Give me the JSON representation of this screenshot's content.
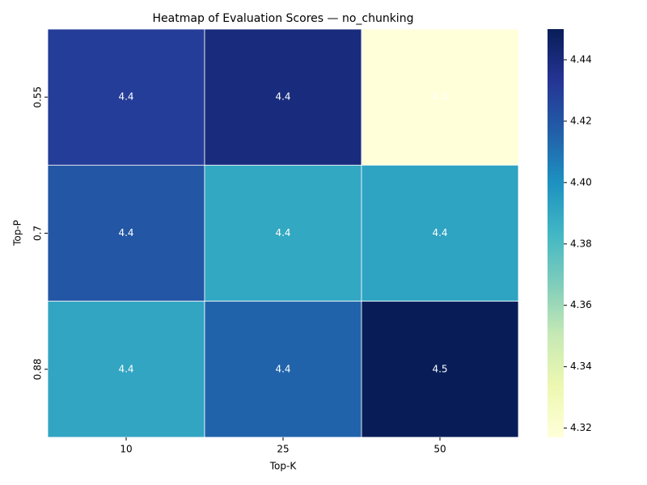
{
  "chart_data": {
    "type": "heatmap",
    "title": "Heatmap of Evaluation Scores — no_chunking",
    "x_label": "Top-K",
    "y_label": "Top-P",
    "x_categories": [
      "10",
      "25",
      "50"
    ],
    "y_categories": [
      "0.55",
      "0.7",
      "0.88"
    ],
    "values": [
      [
        4.43,
        4.44,
        4.317
      ],
      [
        4.42,
        4.39,
        4.392
      ],
      [
        4.391,
        4.415,
        4.45
      ]
    ],
    "value_labels": [
      [
        "4.4",
        "4.4",
        "4.3"
      ],
      [
        "4.4",
        "4.4",
        "4.4"
      ],
      [
        "4.4",
        "4.4",
        "4.5"
      ]
    ],
    "colormap": "YlGnBu",
    "clim": [
      4.317,
      4.45
    ],
    "cticks": [
      4.32,
      4.34,
      4.36,
      4.38,
      {
        "value": 4.4,
        "label": "4.40"
      },
      4.42,
      4.44
    ]
  }
}
